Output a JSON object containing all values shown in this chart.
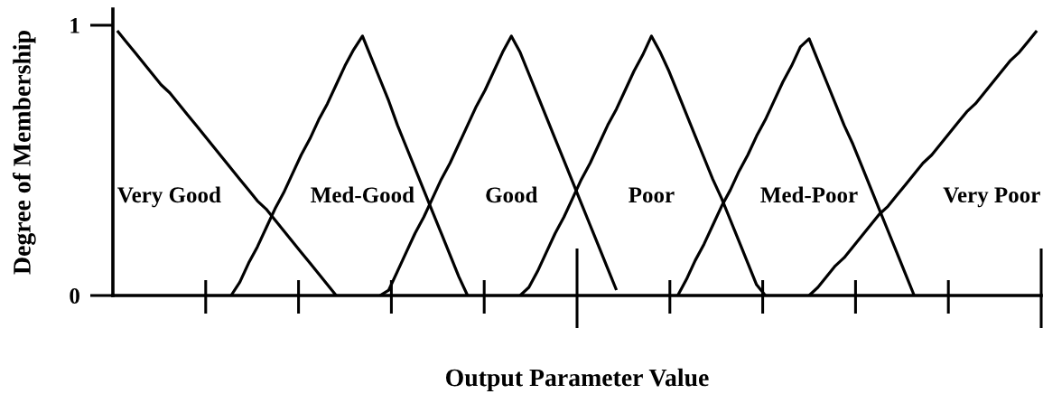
{
  "chart_data": {
    "type": "line",
    "xlabel": "Output Parameter Value",
    "ylabel": "Degree of Membership",
    "categories": [
      null,
      null,
      null,
      null,
      null,
      null,
      null,
      null,
      null,
      null,
      null,
      null,
      null,
      null,
      null,
      null,
      null,
      null,
      null,
      null,
      null,
      null,
      null,
      null,
      null,
      null,
      null,
      null,
      null,
      null,
      null,
      null,
      null,
      null,
      null,
      null,
      null,
      null,
      null,
      null,
      null,
      null,
      null,
      null,
      null,
      null,
      null,
      null,
      null,
      null,
      null,
      null,
      null,
      null,
      null,
      null,
      null,
      null,
      null,
      null,
      null,
      null,
      null,
      null,
      null,
      null,
      null,
      null,
      null,
      null,
      null,
      null,
      null,
      null,
      null,
      null,
      null,
      null,
      null,
      null,
      null,
      null,
      null,
      null,
      null,
      null,
      null,
      null,
      null,
      null,
      null,
      null,
      null,
      null,
      null,
      null,
      null,
      null,
      null,
      null,
      null,
      null,
      null,
      null,
      null,
      null
    ],
    "ylim": [
      0,
      1.06
    ],
    "yticks": [
      0,
      1
    ],
    "tick_labels": "y",
    "line_style": "solid",
    "series": [
      {
        "name": "Very Good",
        "color": "#000000",
        "values": [
          0.98,
          0.94,
          0.9,
          0.86,
          0.82,
          0.78,
          0.75,
          0.71,
          0.67,
          0.63,
          0.59,
          0.55,
          0.51,
          0.47,
          0.43,
          0.39,
          0.35,
          0.32,
          0.28,
          0.24,
          0.2,
          0.16,
          0.12,
          0.08,
          0.04,
          0,
          null,
          null,
          null,
          null,
          null,
          null,
          null,
          null,
          null,
          null,
          null,
          null,
          null,
          null,
          null,
          null,
          null,
          null,
          null,
          null,
          null,
          null,
          null,
          null,
          null,
          null,
          null,
          null,
          null,
          null,
          null,
          null,
          null,
          null,
          null,
          null,
          null,
          null,
          null,
          null,
          null,
          null,
          null,
          null,
          null,
          null,
          null,
          null,
          null,
          null,
          null,
          null,
          null,
          null,
          null,
          null,
          null,
          null,
          null,
          null,
          null,
          null,
          null,
          null,
          null,
          null,
          null,
          null,
          null,
          null,
          null,
          null,
          null,
          null,
          null,
          null,
          null,
          null,
          null,
          null
        ]
      },
      {
        "name": "Med-Good",
        "color": "#000000",
        "values": [
          null,
          null,
          null,
          null,
          null,
          null,
          null,
          null,
          null,
          null,
          null,
          null,
          null,
          0,
          0.05,
          0.12,
          0.18,
          0.25,
          0.32,
          0.38,
          0.45,
          0.52,
          0.58,
          0.65,
          0.71,
          0.78,
          0.85,
          0.91,
          0.96,
          0.88,
          0.8,
          0.72,
          0.63,
          0.55,
          0.47,
          0.39,
          0.31,
          0.23,
          0.15,
          0.07,
          0,
          null,
          null,
          null,
          null,
          null,
          null,
          null,
          null,
          null,
          null,
          null,
          null,
          null,
          null,
          null,
          null,
          null,
          null,
          null,
          null,
          null,
          null,
          null,
          null,
          null,
          null,
          null,
          null,
          null,
          null,
          null,
          null,
          null,
          null,
          null,
          null,
          null,
          null,
          null,
          null,
          null,
          null,
          null,
          null,
          null,
          null,
          null,
          null,
          null,
          null,
          null,
          null,
          null,
          null,
          null,
          null,
          null,
          null,
          null,
          null,
          null,
          null,
          null,
          null,
          null
        ]
      },
      {
        "name": "Good",
        "color": "#000000",
        "values": [
          null,
          null,
          null,
          null,
          null,
          null,
          null,
          null,
          null,
          null,
          null,
          null,
          null,
          null,
          null,
          null,
          null,
          null,
          null,
          null,
          null,
          null,
          null,
          null,
          null,
          null,
          null,
          null,
          null,
          null,
          0,
          0.02,
          0.09,
          0.16,
          0.23,
          0.29,
          0.36,
          0.43,
          0.49,
          0.56,
          0.63,
          0.7,
          0.76,
          0.83,
          0.9,
          0.96,
          0.9,
          0.82,
          0.74,
          0.66,
          0.58,
          0.5,
          0.42,
          0.34,
          0.26,
          0.18,
          0.1,
          0.02,
          null,
          null,
          null,
          null,
          null,
          null,
          null,
          null,
          null,
          null,
          null,
          null,
          null,
          null,
          null,
          null,
          null,
          null,
          null,
          null,
          null,
          null,
          null,
          null,
          null,
          null,
          null,
          null,
          null,
          null,
          null,
          null,
          null,
          null,
          null,
          null,
          null,
          null,
          null,
          null,
          null,
          null,
          null,
          null,
          null,
          null,
          null,
          null
        ]
      },
      {
        "name": "Poor",
        "color": "#000000",
        "values": [
          null,
          null,
          null,
          null,
          null,
          null,
          null,
          null,
          null,
          null,
          null,
          null,
          null,
          null,
          null,
          null,
          null,
          null,
          null,
          null,
          null,
          null,
          null,
          null,
          null,
          null,
          null,
          null,
          null,
          null,
          null,
          null,
          null,
          null,
          null,
          null,
          null,
          null,
          null,
          null,
          null,
          null,
          null,
          null,
          null,
          null,
          0,
          0.03,
          0.09,
          0.16,
          0.23,
          0.29,
          0.36,
          0.43,
          0.49,
          0.56,
          0.63,
          0.69,
          0.76,
          0.83,
          0.89,
          0.96,
          0.9,
          0.83,
          0.75,
          0.67,
          0.59,
          0.51,
          0.43,
          0.36,
          0.28,
          0.2,
          0.12,
          0.04,
          0,
          null,
          null,
          null,
          null,
          null,
          null,
          null,
          null,
          null,
          null,
          null,
          null,
          null,
          null,
          null,
          null,
          null,
          null,
          null,
          null,
          null,
          null,
          null,
          null,
          null,
          null,
          null,
          null,
          null,
          null,
          null
        ]
      },
      {
        "name": "Med-Poor",
        "color": "#000000",
        "values": [
          null,
          null,
          null,
          null,
          null,
          null,
          null,
          null,
          null,
          null,
          null,
          null,
          null,
          null,
          null,
          null,
          null,
          null,
          null,
          null,
          null,
          null,
          null,
          null,
          null,
          null,
          null,
          null,
          null,
          null,
          null,
          null,
          null,
          null,
          null,
          null,
          null,
          null,
          null,
          null,
          null,
          null,
          null,
          null,
          null,
          null,
          null,
          null,
          null,
          null,
          null,
          null,
          null,
          null,
          null,
          null,
          null,
          null,
          null,
          null,
          null,
          null,
          null,
          null,
          0,
          0.06,
          0.13,
          0.19,
          0.26,
          0.33,
          0.39,
          0.46,
          0.52,
          0.59,
          0.65,
          0.72,
          0.79,
          0.85,
          0.92,
          0.95,
          0.87,
          0.79,
          0.71,
          0.63,
          0.56,
          0.48,
          0.4,
          0.32,
          0.24,
          0.16,
          0.08,
          0,
          null,
          null,
          null,
          null,
          null,
          null,
          null,
          null,
          null,
          null,
          null,
          null,
          null,
          null
        ]
      },
      {
        "name": "Very Poor",
        "color": "#000000",
        "values": [
          null,
          null,
          null,
          null,
          null,
          null,
          null,
          null,
          null,
          null,
          null,
          null,
          null,
          null,
          null,
          null,
          null,
          null,
          null,
          null,
          null,
          null,
          null,
          null,
          null,
          null,
          null,
          null,
          null,
          null,
          null,
          null,
          null,
          null,
          null,
          null,
          null,
          null,
          null,
          null,
          null,
          null,
          null,
          null,
          null,
          null,
          null,
          null,
          null,
          null,
          null,
          null,
          null,
          null,
          null,
          null,
          null,
          null,
          null,
          null,
          null,
          null,
          null,
          null,
          null,
          null,
          null,
          null,
          null,
          null,
          null,
          null,
          null,
          null,
          null,
          null,
          null,
          null,
          null,
          0,
          0.03,
          0.07,
          0.11,
          0.14,
          0.18,
          0.22,
          0.26,
          0.3,
          0.33,
          0.37,
          0.41,
          0.45,
          0.49,
          0.52,
          0.56,
          0.6,
          0.64,
          0.68,
          0.71,
          0.75,
          0.79,
          0.83,
          0.87,
          0.9,
          0.94,
          0.98
        ]
      }
    ]
  }
}
